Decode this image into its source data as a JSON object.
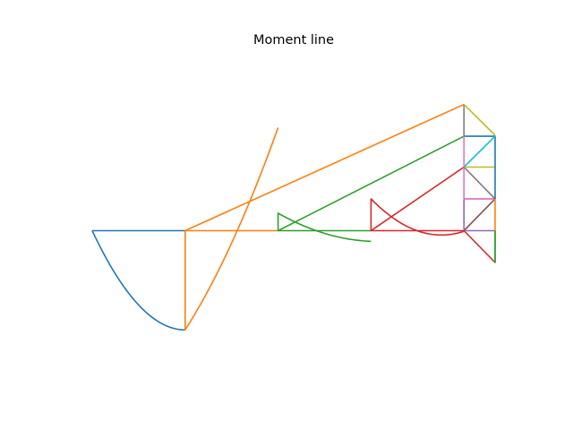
{
  "chart_data": {
    "type": "line",
    "title": "Moment line",
    "xlabel": "",
    "ylabel": "",
    "xlim": [
      -0.2,
      6.2
    ],
    "ylim": [
      -5.5,
      4.5
    ],
    "axes_visible": false,
    "grid": false,
    "legend": "none",
    "series": [
      {
        "color": "#1f77b4",
        "x": [
          0,
          0,
          0.25,
          0.5,
          0.75,
          1,
          1.25,
          1.5,
          1.75,
          2
        ],
        "y": [
          0,
          0,
          -1.125,
          -2,
          -2.625,
          -3,
          -3.125,
          -3,
          -2.625,
          -2
        ],
        "shape": "segment 0-2, curve -x(x-... / polygon sampled",
        "segments": [
          {
            "x": [
              0,
              2
            ],
            "y": [
              0,
              0
            ]
          },
          {
            "x": [
              0,
              0.25,
              0.5,
              0.75,
              1,
              1.25,
              1.5,
              1.75,
              2
            ],
            "y": [
              0,
              -0.75,
              -1.375,
              -1.875,
              -2.25,
              -2.5625,
              -2.8125,
              -3.0,
              -3.15
            ]
          }
        ]
      }
    ]
  }
}
